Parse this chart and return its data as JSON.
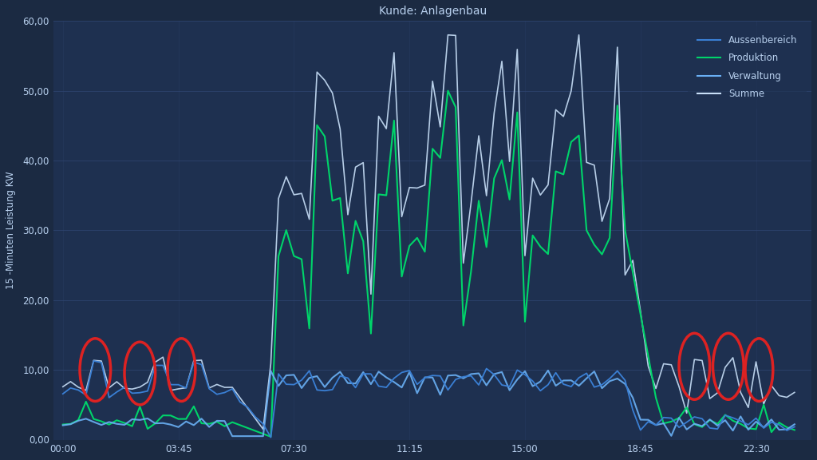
{
  "title": "Kunde: Anlagenbau",
  "ylabel": "15 -Minuten Leistung KW",
  "background_color": "#1b2a42",
  "plot_bg_color": "#1e3050",
  "grid_color": "#2e4470",
  "text_color": "#b8d0ee",
  "ylim": [
    0,
    60
  ],
  "yticks": [
    0,
    10,
    20,
    30,
    40,
    50,
    60
  ],
  "ytick_labels": [
    "0,00",
    "10,00",
    "20,00",
    "30,00",
    "40,00",
    "50,00",
    "60,00"
  ],
  "xtick_positions": [
    0,
    3.75,
    7.5,
    11.25,
    15.0,
    18.75,
    22.5
  ],
  "xtick_labels": [
    "00:00",
    "03:45",
    "07:30",
    "11:15",
    "15:00",
    "18:45",
    "22:30"
  ],
  "legend_labels": [
    "Aussenbereich",
    "Produktion",
    "Verwaltung",
    "Summe"
  ],
  "colors": {
    "aussenbereich": "#3a7fd4",
    "produktion": "#00d46a",
    "verwaltung": "#6ab0f5",
    "summe": "#c8dff8"
  },
  "line_widths": {
    "aussenbereich": 1.3,
    "produktion": 1.5,
    "verwaltung": 1.5,
    "summe": 1.2
  },
  "red_circle_color": "#dd2222"
}
